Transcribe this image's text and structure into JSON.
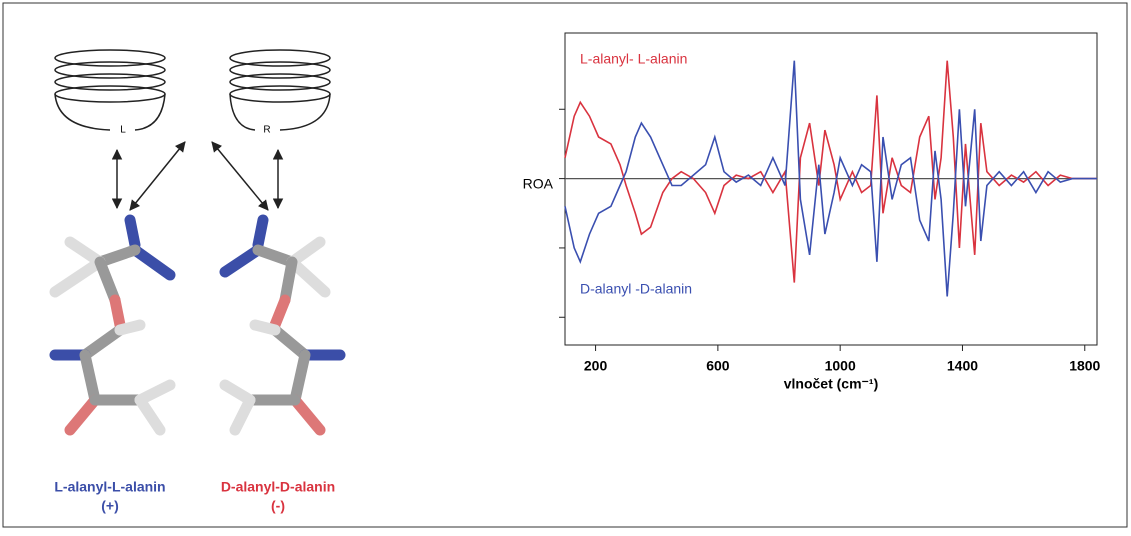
{
  "diagram": {
    "left_helix_label": "L",
    "right_helix_label": "R",
    "left_molecule": "L-alanyl-L-alanin",
    "left_sign": "(+)",
    "right_molecule": "D-alanyl-D-alanin",
    "right_sign": "(-)"
  },
  "chart_data": {
    "type": "line",
    "ylabel": "ROA",
    "xlabel": "vlnočet (cm⁻¹)",
    "xlim": [
      100,
      1840
    ],
    "xticks": [
      200,
      600,
      1000,
      1400,
      1800
    ],
    "ylim": [
      -2.4,
      2.1
    ],
    "yticks": [
      -2,
      -1,
      0,
      1
    ],
    "x": [
      100,
      130,
      150,
      180,
      210,
      250,
      280,
      300,
      330,
      350,
      380,
      420,
      450,
      480,
      520,
      560,
      590,
      620,
      660,
      700,
      740,
      780,
      820,
      850,
      870,
      900,
      930,
      950,
      980,
      1000,
      1040,
      1070,
      1100,
      1120,
      1140,
      1170,
      1200,
      1230,
      1260,
      1290,
      1310,
      1330,
      1350,
      1370,
      1390,
      1410,
      1440,
      1460,
      1480,
      1520,
      1560,
      1600,
      1640,
      1680,
      1720,
      1760,
      1800,
      1840
    ],
    "series": [
      {
        "name": "L-alanyl- L-alanin",
        "color": "#d9333f",
        "values": [
          0.3,
          0.9,
          1.1,
          0.9,
          0.6,
          0.5,
          0.2,
          -0.1,
          -0.5,
          -0.8,
          -0.7,
          -0.2,
          0.0,
          0.1,
          0,
          -0.2,
          -0.5,
          -0.1,
          0.05,
          0,
          0.1,
          -0.2,
          0.1,
          -1.5,
          0.3,
          0.8,
          -0.1,
          0.7,
          0.2,
          -0.3,
          0.1,
          -0.2,
          -0.1,
          1.2,
          -0.5,
          0.3,
          -0.1,
          -0.2,
          0.6,
          0.9,
          -0.3,
          0.3,
          1.7,
          0.6,
          -1.0,
          0.5,
          -1.1,
          0.8,
          0.1,
          -0.1,
          0.05,
          -0.05,
          0.1,
          -0.1,
          0.05,
          0,
          0,
          0
        ]
      },
      {
        "name": "D-alanyl -D-alanin",
        "color": "#3a4fb0",
        "values": [
          -0.4,
          -1.0,
          -1.2,
          -0.8,
          -0.5,
          -0.4,
          -0.1,
          0.1,
          0.6,
          0.8,
          0.6,
          0.2,
          -0.1,
          -0.1,
          0.05,
          0.2,
          0.6,
          0.1,
          -0.05,
          0.05,
          -0.1,
          0.3,
          -0.1,
          1.7,
          -0.3,
          -1.1,
          0.2,
          -0.8,
          -0.2,
          0.3,
          -0.1,
          0.2,
          0.1,
          -1.2,
          0.6,
          -0.3,
          0.2,
          0.3,
          -0.6,
          -0.9,
          0.4,
          -0.3,
          -1.7,
          -0.5,
          1.0,
          -0.4,
          1.0,
          -0.9,
          -0.1,
          0.1,
          -0.1,
          0.1,
          -0.2,
          0.1,
          -0.05,
          0,
          0,
          0
        ]
      }
    ]
  }
}
